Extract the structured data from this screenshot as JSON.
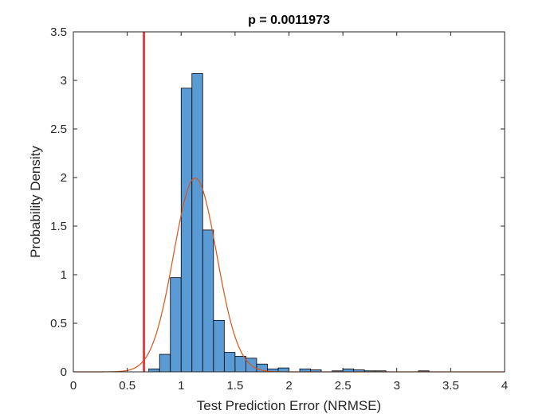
{
  "chart_data": {
    "type": "bar",
    "title": "p = 0.0011973",
    "xlabel": "Test Prediction Error (NRMSE)",
    "ylabel": "Probability Density",
    "xlim": [
      0,
      4
    ],
    "ylim": [
      0,
      3.5
    ],
    "xticks": [
      0,
      0.5,
      1,
      1.5,
      2,
      2.5,
      3,
      3.5,
      4
    ],
    "xtick_labels": [
      "0",
      "0.5",
      "1",
      "1.5",
      "2",
      "2.5",
      "3",
      "3.5",
      "4"
    ],
    "yticks": [
      0,
      0.5,
      1,
      1.5,
      2,
      2.5,
      3,
      3.5
    ],
    "ytick_labels": [
      "0",
      "0.5",
      "1",
      "1.5",
      "2",
      "2.5",
      "3",
      "3.5"
    ],
    "grid": false,
    "histogram": {
      "bin_edges": [
        0.7,
        0.8,
        0.9,
        1.0,
        1.1,
        1.2,
        1.3,
        1.4,
        1.5,
        1.6,
        1.7,
        1.8,
        1.9,
        2.0,
        2.1,
        2.2,
        2.3,
        2.4,
        2.5,
        2.6,
        2.7,
        2.8,
        2.9,
        3.0,
        3.1,
        3.2,
        3.3
      ],
      "values": [
        0.03,
        0.18,
        0.97,
        2.92,
        3.07,
        1.46,
        0.53,
        0.2,
        0.16,
        0.14,
        0.08,
        0.03,
        0.04,
        0,
        0.03,
        0.02,
        0,
        0.01,
        0.03,
        0.02,
        0.01,
        0.01,
        0,
        0,
        0,
        0.01
      ],
      "fill_color": "#5b9bd5",
      "edge_color": "#000000"
    },
    "fit_curve": {
      "distribution": "normal",
      "mean": 1.13,
      "std": 0.2,
      "color": "#d95319"
    },
    "reference_line": {
      "x": 0.655,
      "color": "#ea3b3b"
    }
  }
}
